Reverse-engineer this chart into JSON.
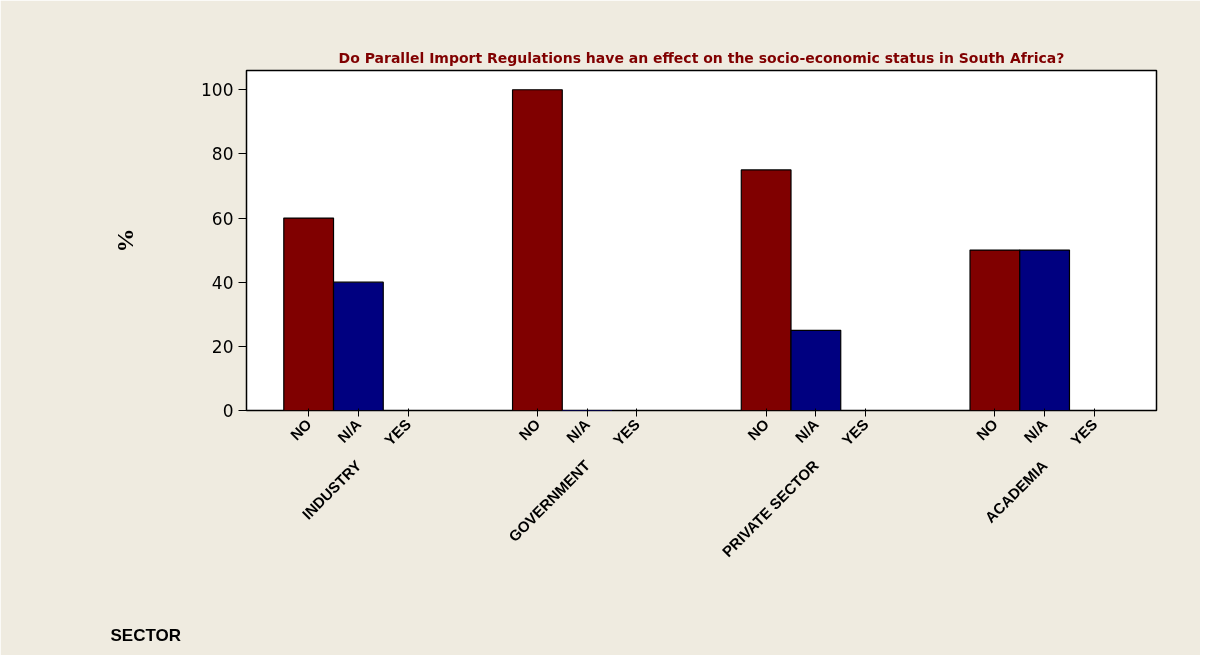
{
  "chart_data": {
    "type": "bar",
    "title": "Do Parallel Import Regulations have an effect on the socio-economic status in South Africa?",
    "xlabel": "SECTOR",
    "ylabel": "%",
    "categories": [
      "INDUSTRY",
      "GOVERNMENT",
      "PRIVATE SECTOR",
      "ACADEMIA"
    ],
    "series": [
      {
        "name": "NO",
        "color": "#800000",
        "values": [
          60,
          100,
          75,
          50
        ]
      },
      {
        "name": "N/A",
        "color": "#000080",
        "values": [
          40,
          0,
          25,
          50
        ]
      },
      {
        "name": "YES",
        "color": "#000000",
        "values": [
          0,
          0,
          0,
          0
        ]
      }
    ],
    "ylim": [
      0,
      106
    ],
    "yticks": [
      0,
      20,
      40,
      60,
      80,
      100
    ],
    "grid": false,
    "legend": "bottom"
  }
}
